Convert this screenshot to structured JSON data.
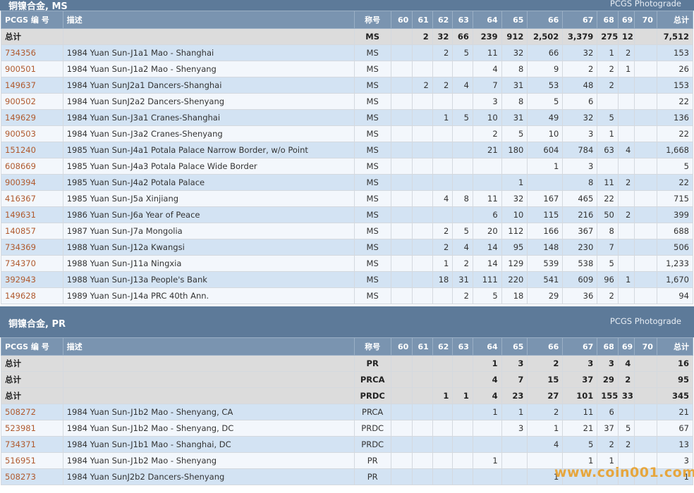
{
  "columns": {
    "pcgs": "PCGS 编 号",
    "desc": "描述",
    "designation": "称号",
    "grades": [
      "60",
      "61",
      "62",
      "63",
      "64",
      "65",
      "66",
      "67",
      "68",
      "69",
      "70"
    ],
    "total": "总计"
  },
  "sections": [
    {
      "title": "铜镍合金, MS",
      "photograde": "PCGS Photograde",
      "rows": [
        {
          "type": "total",
          "pcgs": "总计",
          "desc": "",
          "designation": "MS",
          "grades": [
            "",
            "2",
            "32",
            "66",
            "239",
            "912",
            "2,502",
            "3,379",
            "275",
            "12",
            ""
          ],
          "total": "7,512"
        },
        {
          "type": "item",
          "pcgs": "734356",
          "desc": "1984 Yuan Sun-J1a1 Mao - Shanghai",
          "designation": "MS",
          "grades": [
            "",
            "",
            "2",
            "5",
            "11",
            "32",
            "66",
            "32",
            "1",
            "2",
            ""
          ],
          "total": "153"
        },
        {
          "type": "item",
          "pcgs": "900501",
          "desc": "1984 Yuan Sun-J1a2 Mao - Shenyang",
          "designation": "MS",
          "grades": [
            "",
            "",
            "",
            "",
            "4",
            "8",
            "9",
            "2",
            "2",
            "1",
            ""
          ],
          "total": "26"
        },
        {
          "type": "item",
          "pcgs": "149637",
          "desc": "1984 Yuan SunJ2a1 Dancers-Shanghai",
          "designation": "MS",
          "grades": [
            "",
            "2",
            "2",
            "4",
            "7",
            "31",
            "53",
            "48",
            "2",
            "",
            ""
          ],
          "total": "153"
        },
        {
          "type": "item",
          "pcgs": "900502",
          "desc": "1984 Yuan SunJ2a2 Dancers-Shenyang",
          "designation": "MS",
          "grades": [
            "",
            "",
            "",
            "",
            "3",
            "8",
            "5",
            "6",
            "",
            "",
            ""
          ],
          "total": "22"
        },
        {
          "type": "item",
          "pcgs": "149629",
          "desc": "1984 Yuan Sun-J3a1 Cranes-Shanghai",
          "designation": "MS",
          "grades": [
            "",
            "",
            "1",
            "5",
            "10",
            "31",
            "49",
            "32",
            "5",
            "",
            ""
          ],
          "total": "136"
        },
        {
          "type": "item",
          "pcgs": "900503",
          "desc": "1984 Yuan Sun-J3a2 Cranes-Shenyang",
          "designation": "MS",
          "grades": [
            "",
            "",
            "",
            "",
            "2",
            "5",
            "10",
            "3",
            "1",
            "",
            ""
          ],
          "total": "22"
        },
        {
          "type": "item",
          "pcgs": "151240",
          "desc": "1985 Yuan Sun-J4a1 Potala Palace Narrow Border, w/o Point",
          "designation": "MS",
          "grades": [
            "",
            "",
            "",
            "",
            "21",
            "180",
            "604",
            "784",
            "63",
            "4",
            ""
          ],
          "total": "1,668"
        },
        {
          "type": "item",
          "pcgs": "608669",
          "desc": "1985 Yuan Sun-J4a3 Potala Palace Wide Border",
          "designation": "MS",
          "grades": [
            "",
            "",
            "",
            "",
            "",
            "",
            "1",
            "3",
            "",
            "",
            ""
          ],
          "total": "5"
        },
        {
          "type": "item",
          "pcgs": "900394",
          "desc": "1985 Yuan Sun-J4a2 Potala Palace",
          "designation": "MS",
          "grades": [
            "",
            "",
            "",
            "",
            "",
            "1",
            "",
            "8",
            "11",
            "2",
            ""
          ],
          "total": "22"
        },
        {
          "type": "item",
          "pcgs": "416367",
          "desc": "1985 Yuan Sun-J5a Xinjiang",
          "designation": "MS",
          "grades": [
            "",
            "",
            "4",
            "8",
            "11",
            "32",
            "167",
            "465",
            "22",
            "",
            ""
          ],
          "total": "715"
        },
        {
          "type": "item",
          "pcgs": "149631",
          "desc": "1986 Yuan Sun-J6a Year of Peace",
          "designation": "MS",
          "grades": [
            "",
            "",
            "",
            "",
            "6",
            "10",
            "115",
            "216",
            "50",
            "2",
            ""
          ],
          "total": "399"
        },
        {
          "type": "item",
          "pcgs": "140857",
          "desc": "1987 Yuan Sun-J7a Mongolia",
          "designation": "MS",
          "grades": [
            "",
            "",
            "2",
            "5",
            "20",
            "112",
            "166",
            "367",
            "8",
            "",
            ""
          ],
          "total": "688"
        },
        {
          "type": "item",
          "pcgs": "734369",
          "desc": "1988 Yuan Sun-J12a Kwangsi",
          "designation": "MS",
          "grades": [
            "",
            "",
            "2",
            "4",
            "14",
            "95",
            "148",
            "230",
            "7",
            "",
            ""
          ],
          "total": "506"
        },
        {
          "type": "item",
          "pcgs": "734370",
          "desc": "1988 Yuan Sun-J11a Ningxia",
          "designation": "MS",
          "grades": [
            "",
            "",
            "1",
            "2",
            "14",
            "129",
            "539",
            "538",
            "5",
            "",
            ""
          ],
          "total": "1,233"
        },
        {
          "type": "item",
          "pcgs": "392943",
          "desc": "1988 Yuan Sun-J13a People's Bank",
          "designation": "MS",
          "grades": [
            "",
            "",
            "18",
            "31",
            "111",
            "220",
            "541",
            "609",
            "96",
            "1",
            ""
          ],
          "total": "1,670"
        },
        {
          "type": "item",
          "pcgs": "149628",
          "desc": "1989 Yuan Sun-J14a PRC 40th Ann.",
          "designation": "MS",
          "grades": [
            "",
            "",
            "",
            "2",
            "5",
            "18",
            "29",
            "36",
            "2",
            "",
            ""
          ],
          "total": "94"
        }
      ]
    },
    {
      "title": "铜镍合金, PR",
      "photograde": "PCGS Photograde",
      "rows": [
        {
          "type": "total",
          "pcgs": "总计",
          "desc": "",
          "designation": "PR",
          "grades": [
            "",
            "",
            "",
            "",
            "1",
            "3",
            "2",
            "3",
            "3",
            "4",
            ""
          ],
          "total": "16"
        },
        {
          "type": "total",
          "pcgs": "总计",
          "desc": "",
          "designation": "PRCA",
          "grades": [
            "",
            "",
            "",
            "",
            "4",
            "7",
            "15",
            "37",
            "29",
            "2",
            ""
          ],
          "total": "95"
        },
        {
          "type": "total",
          "pcgs": "总计",
          "desc": "",
          "designation": "PRDC",
          "grades": [
            "",
            "",
            "1",
            "1",
            "4",
            "23",
            "27",
            "101",
            "155",
            "33",
            ""
          ],
          "total": "345"
        },
        {
          "type": "item",
          "pcgs": "508272",
          "desc": "1984 Yuan Sun-J1b2 Mao - Shenyang, CA",
          "designation": "PRCA",
          "grades": [
            "",
            "",
            "",
            "",
            "1",
            "1",
            "2",
            "11",
            "6",
            "",
            ""
          ],
          "total": "21"
        },
        {
          "type": "item",
          "pcgs": "523981",
          "desc": "1984 Yuan Sun-J1b2 Mao - Shenyang, DC",
          "designation": "PRDC",
          "grades": [
            "",
            "",
            "",
            "",
            "",
            "3",
            "1",
            "21",
            "37",
            "5",
            ""
          ],
          "total": "67"
        },
        {
          "type": "item",
          "pcgs": "734371",
          "desc": "1984 Yuan Sun-J1b1 Mao - Shanghai, DC",
          "designation": "PRDC",
          "grades": [
            "",
            "",
            "",
            "",
            "",
            "",
            "4",
            "5",
            "2",
            "2",
            ""
          ],
          "total": "13"
        },
        {
          "type": "item",
          "pcgs": "516951",
          "desc": "1984 Yuan Sun-J1b2 Mao - Shenyang",
          "designation": "PR",
          "grades": [
            "",
            "",
            "",
            "",
            "1",
            "",
            "",
            "1",
            "1",
            "",
            ""
          ],
          "total": "3"
        },
        {
          "type": "item",
          "pcgs": "508273",
          "desc": "1984 Yuan SunJ2b2 Dancers-Shenyang",
          "designation": "PR",
          "grades": [
            "",
            "",
            "",
            "",
            "",
            "",
            "1",
            "",
            "",
            "",
            ""
          ],
          "total": "1"
        }
      ]
    }
  ],
  "watermark": "www.coin001.com"
}
